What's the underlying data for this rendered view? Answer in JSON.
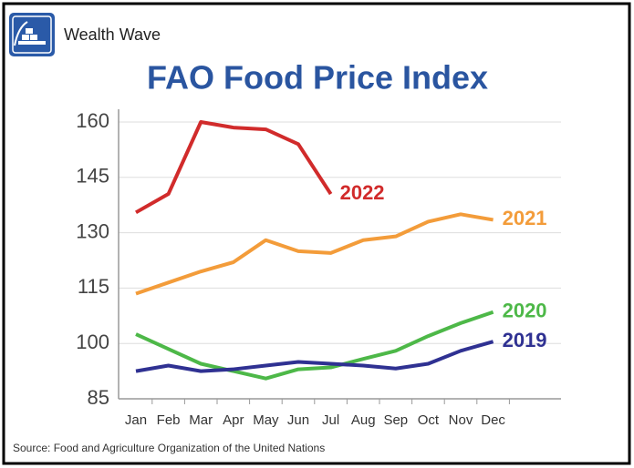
{
  "chart_data": {
    "type": "line",
    "brand": "Wealth Wave",
    "title": "FAO Food Price Index",
    "source": "Source: Food and Agriculture Organization of the United Nations",
    "categories": [
      "Jan",
      "Feb",
      "Mar",
      "Apr",
      "May",
      "Jun",
      "Jul",
      "Aug",
      "Sep",
      "Oct",
      "Nov",
      "Dec"
    ],
    "ylim": [
      85,
      160
    ],
    "yticks": [
      85,
      100,
      115,
      130,
      145,
      160
    ],
    "grid": true,
    "series": [
      {
        "name": "2022",
        "color": "#d12b2b",
        "values": [
          135.5,
          140.5,
          160,
          158.5,
          158,
          154,
          140.5,
          null,
          null,
          null,
          null,
          null
        ]
      },
      {
        "name": "2021",
        "color": "#f39c3a",
        "values": [
          113.5,
          116.5,
          119.5,
          122,
          128,
          125,
          124.5,
          128,
          129,
          133,
          135,
          133.5
        ]
      },
      {
        "name": "2020",
        "color": "#4db848",
        "values": [
          102.5,
          98.5,
          94.5,
          92.5,
          90.5,
          93,
          93.5,
          95.8,
          98,
          102,
          105.5,
          108.5
        ]
      },
      {
        "name": "2019",
        "color": "#2f3192",
        "values": [
          92.5,
          94,
          92.5,
          93,
          94,
          95,
          94.5,
          94,
          93.2,
          94.5,
          98,
          100.5
        ]
      }
    ]
  }
}
